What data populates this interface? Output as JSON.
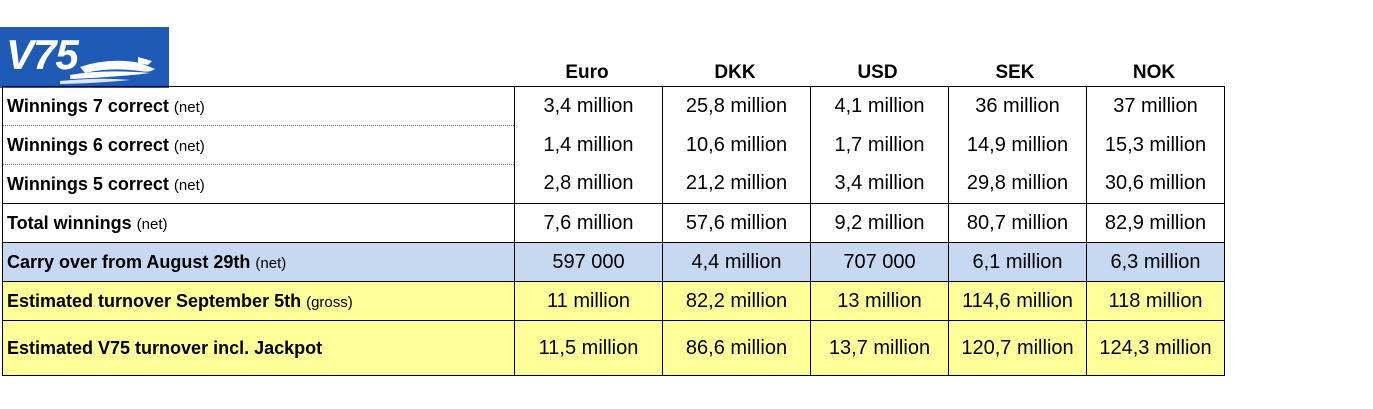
{
  "logo": {
    "text": "V75"
  },
  "columns": [
    "Euro",
    "DKK",
    "USD",
    "SEK",
    "NOK"
  ],
  "rows": [
    {
      "label": "Winnings 7 correct",
      "note": "(net)",
      "values": [
        "3,4 million",
        "25,8 million",
        "4,1 million",
        "36 million",
        "37 million"
      ]
    },
    {
      "label": "Winnings 6 correct",
      "note": "(net)",
      "values": [
        "1,4 million",
        "10,6 million",
        "1,7 million",
        "14,9 million",
        "15,3 million"
      ]
    },
    {
      "label": "Winnings 5 correct",
      "note": "(net)",
      "values": [
        "2,8 million",
        "21,2 million",
        "3,4 million",
        "29,8 million",
        "30,6 million"
      ]
    },
    {
      "label": "Total winnings",
      "note": "(net)",
      "values": [
        "7,6 million",
        "57,6 million",
        "9,2 million",
        "80,7 million",
        "82,9 million"
      ]
    },
    {
      "label": "Carry over from August 29th",
      "note": "(net)",
      "values": [
        "597 000",
        "4,4 million",
        "707 000",
        "6,1 million",
        "6,3 million"
      ]
    },
    {
      "label": "Estimated turnover September 5th",
      "note": "(gross)",
      "values": [
        "11 million",
        "82,2 million",
        "13 million",
        "114,6 million",
        "118 million"
      ]
    },
    {
      "label": "Estimated V75 turnover incl. Jackpot",
      "note": "",
      "values": [
        "11,5 million",
        "86,6 million",
        "13,7 million",
        "120,7 million",
        "124,3 million"
      ]
    }
  ],
  "colors": {
    "logo_bg": "#1f5bb6",
    "carry_bg": "#c6d9f1",
    "estimate_bg": "#ffff99"
  }
}
